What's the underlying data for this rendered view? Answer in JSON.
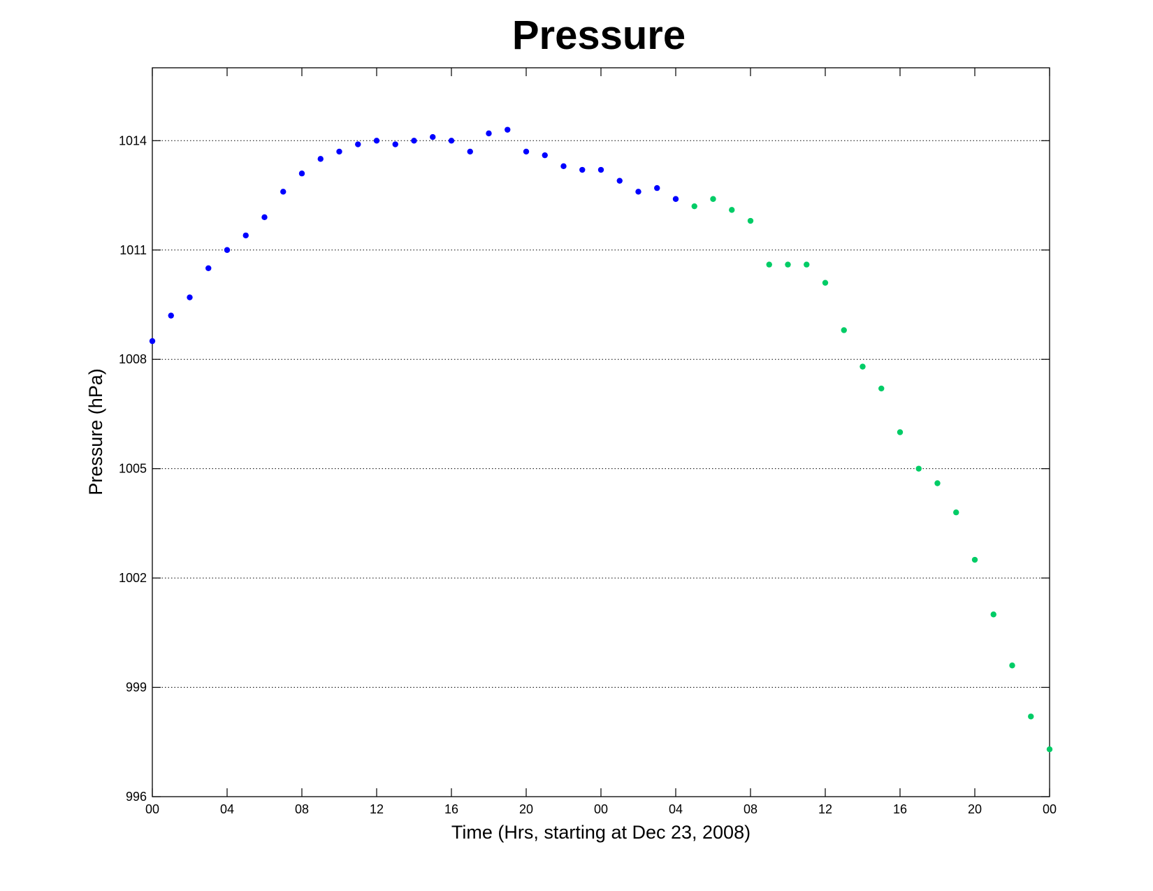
{
  "chart_data": {
    "type": "scatter",
    "title": "Pressure",
    "xlabel": "Time (Hrs, starting at Dec 23, 2008)",
    "ylabel": "Pressure (hPa)",
    "x_unit": "hours",
    "xlim": [
      0,
      48
    ],
    "ylim": [
      996,
      1016
    ],
    "x_ticks": [
      0,
      4,
      8,
      12,
      16,
      20,
      24,
      28,
      32,
      36,
      40,
      44,
      48
    ],
    "x_tick_labels": [
      "00",
      "04",
      "08",
      "12",
      "16",
      "20",
      "00",
      "04",
      "08",
      "12",
      "16",
      "20",
      "00"
    ],
    "y_ticks": [
      996,
      999,
      1002,
      1005,
      1008,
      1011,
      1014
    ],
    "y_tick_labels": [
      "996",
      "999",
      "1002",
      "1005",
      "1008",
      "1011",
      "1014"
    ],
    "grid": "horizontal dotted",
    "legend": "none",
    "series": [
      {
        "color": "#0000ff",
        "x": [
          0,
          1,
          2,
          3,
          4,
          5,
          6,
          7,
          8,
          9,
          10,
          11,
          12,
          13,
          14,
          15,
          16,
          17,
          18,
          19,
          20,
          21,
          22,
          23,
          24,
          25,
          26,
          27,
          28
        ],
        "y": [
          1008.5,
          1009.2,
          1009.7,
          1010.5,
          1011.0,
          1011.4,
          1011.9,
          1012.6,
          1013.1,
          1013.5,
          1013.7,
          1013.9,
          1014.0,
          1013.9,
          1014.0,
          1014.1,
          1014.0,
          1013.7,
          1014.2,
          1014.3,
          1013.7,
          1013.6,
          1013.3,
          1013.2,
          1013.2,
          1012.9,
          1012.6,
          1012.7,
          1012.4
        ]
      },
      {
        "color": "#00cc66",
        "x": [
          29,
          30,
          31,
          32,
          33,
          34,
          35,
          36,
          37,
          38,
          39,
          40,
          41,
          42,
          43,
          44,
          45,
          46,
          47,
          48
        ],
        "y": [
          1012.2,
          1012.4,
          1012.1,
          1011.8,
          1010.6,
          1010.6,
          1010.6,
          1010.1,
          1008.8,
          1007.8,
          1007.2,
          1006.0,
          1005.0,
          1004.6,
          1003.8,
          1002.5,
          1001.0,
          999.6,
          998.2,
          997.3
        ]
      }
    ]
  }
}
